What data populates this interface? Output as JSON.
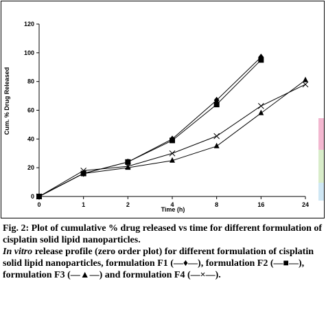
{
  "chart_data": {
    "type": "line",
    "title": "",
    "xlabel": "Time (h)",
    "ylabel": "Cum. % Drug Released",
    "categories": [
      "0",
      "1",
      "2",
      "4",
      "8",
      "16",
      "24"
    ],
    "ylim": [
      0,
      120
    ],
    "yticks": [
      "0",
      "20",
      "40",
      "60",
      "80",
      "100",
      "120"
    ],
    "grid": false,
    "legend": "none",
    "series": [
      {
        "name": "F1",
        "marker": "diamond",
        "values": [
          0,
          16,
          24,
          40,
          67,
          97,
          null
        ]
      },
      {
        "name": "F2",
        "marker": "square",
        "values": [
          0,
          16,
          24,
          39,
          64,
          95,
          null
        ]
      },
      {
        "name": "F3",
        "marker": "triangle",
        "values": [
          0,
          16,
          20,
          25,
          35,
          58,
          81
        ]
      },
      {
        "name": "F4",
        "marker": "cross",
        "values": [
          0,
          18,
          21,
          30,
          42,
          63,
          78
        ]
      }
    ]
  },
  "caption": {
    "title": "Fig. 2: Plot of cumulative % drug released vs time for different formulation of cisplatin solid lipid nanoparticles.",
    "italic_prefix": "In vitro",
    "text": " release profile (zero order plot) for different formulation of cisplatin solid lipid nanoparticles, formulation F1 (—♦—), formulation F2 (—■—), formulation F3 (—▲—) and formulation F4 (—×—)."
  },
  "colors": {
    "line": "#000000",
    "edge_strips": [
      "#f3b7d0",
      "#d8ecc9",
      "#cfe7f4"
    ]
  }
}
